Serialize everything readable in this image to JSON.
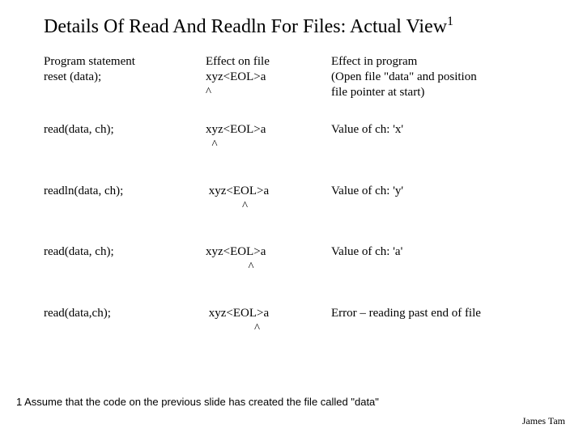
{
  "title": "Details Of Read And Readln For Files: Actual View",
  "title_super": "1",
  "columns": {
    "c1_line1": "Program statement",
    "c1_line2": "reset (data);",
    "c2_line1": "Effect on file",
    "c2_line2": "xyz<EOL>a",
    "c2_line3": "^",
    "c3_line1": "Effect in program",
    "c3_line2": "(Open file \"data\" and position",
    "c3_line3": "file pointer at start)"
  },
  "rows": [
    {
      "stmt": "read(data, ch);",
      "file": "xyz<EOL>a",
      "caret": "  ^",
      "effect": "Value of ch: 'x'"
    },
    {
      "stmt": "readln(data, ch);",
      "file": " xyz<EOL>a",
      "caret": "            ^",
      "effect": "Value of ch: 'y'"
    },
    {
      "stmt": "read(data, ch);",
      "file": "xyz<EOL>a",
      "caret": "              ^",
      "effect": "Value of ch: 'a'"
    },
    {
      "stmt": "read(data,ch);",
      "file": " xyz<EOL>a",
      "caret": "                ^",
      "effect": "Error – reading past end of file"
    }
  ],
  "footnote": "1 Assume that the code on the previous slide has created the file called \"data\"",
  "author": "James Tam"
}
